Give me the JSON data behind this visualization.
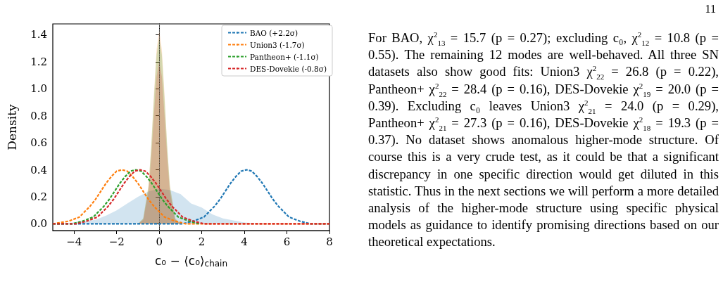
{
  "chart_data": {
    "type": "line",
    "xlabel": "c₀ − ⟨c₀⟩$_{chain}$",
    "ylabel": "Density",
    "xlim": [
      -5,
      8
    ],
    "xticks": [
      {
        "value": -4,
        "label": "−4"
      },
      {
        "value": -2,
        "label": "−2"
      },
      0,
      2,
      4,
      6,
      8
    ],
    "ylim": [
      -0.05,
      1.48
    ],
    "yticks": [
      {
        "value": 0,
        "label": "0.0"
      },
      {
        "value": 0.2,
        "label": "0.2"
      },
      {
        "value": 0.4,
        "label": "0.4"
      },
      {
        "value": 0.6,
        "label": "0.6"
      },
      {
        "value": 0.8,
        "label": "0.8"
      },
      {
        "value": 1,
        "label": "1.0"
      },
      {
        "value": 1.2,
        "label": "1.2"
      },
      {
        "value": 1.4,
        "label": "1.4"
      }
    ],
    "grid": false,
    "legend": "top right",
    "marker": "none",
    "line_style": "dashed",
    "ref_lines": [
      {
        "axis": "x",
        "value": 0,
        "color": "#999999",
        "line_style": "dotted"
      }
    ],
    "series": [
      {
        "type": "area",
        "color": "#1f77b4",
        "x": [
          -5,
          -4,
          -3,
          -2.5,
          -2,
          -1.5,
          -1,
          -0.5,
          0,
          0.5,
          1,
          1.5,
          2,
          2.5,
          3,
          4,
          5,
          6,
          8
        ],
        "values": [
          0,
          0.01,
          0.03,
          0.06,
          0.1,
          0.15,
          0.2,
          0.24,
          0.26,
          0.25,
          0.22,
          0.15,
          0.12,
          0.07,
          0.04,
          0.01,
          0,
          0,
          0
        ]
      },
      {
        "type": "area",
        "color": "#ff7f0e",
        "x": [
          -5,
          -1,
          -0.75,
          -0.5,
          -0.375,
          -0.25,
          -0.125,
          0,
          0.125,
          0.25,
          0.375,
          0.5,
          0.75,
          1,
          8
        ],
        "values": [
          0,
          0,
          0.04,
          0.29,
          0.58,
          0.96,
          1.29,
          1.43,
          1.29,
          0.96,
          0.58,
          0.29,
          0.04,
          0,
          0
        ]
      },
      {
        "type": "area",
        "color": "#2ca02c",
        "x": [
          -5,
          -1,
          -0.75,
          -0.5,
          -0.375,
          -0.25,
          -0.125,
          0,
          0.125,
          0.25,
          0.375,
          0.5,
          0.75,
          1,
          8
        ],
        "values": [
          0,
          0,
          0.04,
          0.28,
          0.57,
          0.92,
          1.25,
          1.38,
          1.25,
          0.92,
          0.57,
          0.28,
          0.04,
          0,
          0
        ]
      },
      {
        "type": "area",
        "color": "#d62728",
        "x": [
          -5,
          -1,
          -0.75,
          -0.5,
          -0.375,
          -0.25,
          -0.125,
          0,
          0.125,
          0.25,
          0.375,
          0.5,
          0.75,
          1,
          8
        ],
        "values": [
          0,
          0,
          0.03,
          0.24,
          0.49,
          0.8,
          1.09,
          1.2,
          1.09,
          0.8,
          0.49,
          0.24,
          0.03,
          0,
          0
        ]
      },
      {
        "name": "BAO (+2.2σ)",
        "color": "#1f77b4",
        "x": [
          -5,
          0.1,
          0.6,
          1.1,
          1.6,
          2.1,
          2.35,
          2.6,
          2.85,
          3.1,
          3.35,
          3.6,
          3.85,
          4.1,
          4.35,
          4.6,
          4.85,
          5.1,
          5.35,
          5.6,
          5.85,
          6.1,
          6.6,
          7.1,
          7.6,
          8
        ],
        "values": [
          0,
          0,
          0,
          0,
          0.02,
          0.05,
          0.09,
          0.13,
          0.18,
          0.24,
          0.3,
          0.35,
          0.39,
          0.4,
          0.39,
          0.35,
          0.3,
          0.24,
          0.18,
          0.13,
          0.09,
          0.05,
          0.02,
          0,
          0,
          0
        ]
      },
      {
        "name": "Union3 (-1.7σ)",
        "color": "#ff7f0e",
        "x": [
          -5,
          -4.25,
          -3.75,
          -3.5,
          -3.25,
          -3,
          -2.75,
          -2.5,
          -2.25,
          -2,
          -1.75,
          -1.5,
          -1.25,
          -1,
          -0.75,
          -0.5,
          -0.25,
          0,
          0.25,
          0.75,
          1.25,
          1.75,
          2.25,
          8
        ],
        "values": [
          0,
          0.02,
          0.05,
          0.09,
          0.13,
          0.18,
          0.24,
          0.3,
          0.35,
          0.39,
          0.4,
          0.39,
          0.35,
          0.3,
          0.24,
          0.18,
          0.13,
          0.09,
          0.05,
          0.02,
          0,
          0,
          0,
          0
        ]
      },
      {
        "name": "Pantheon+ (-1.1σ)",
        "color": "#2ca02c",
        "x": [
          -5,
          -4.6,
          -4.1,
          -3.6,
          -3.1,
          -2.85,
          -2.6,
          -2.35,
          -2.1,
          -1.85,
          -1.6,
          -1.35,
          -1.1,
          -0.85,
          -0.6,
          -0.35,
          -0.1,
          0.15,
          0.4,
          0.65,
          0.9,
          1.4,
          1.9
        ],
        "values": [
          0,
          0,
          0,
          0.02,
          0.05,
          0.09,
          0.13,
          0.18,
          0.24,
          0.3,
          0.35,
          0.39,
          0.4,
          0.39,
          0.35,
          0.3,
          0.24,
          0.18,
          0.13,
          0.09,
          0.05,
          0.02,
          0
        ]
      },
      {
        "name": "DES-Dovekie (-0.8σ)",
        "color": "#d62728",
        "x": [
          -5,
          -4.4,
          -3.9,
          -3.4,
          -2.9,
          -2.65,
          -2.4,
          -2.15,
          -1.9,
          -1.65,
          -1.4,
          -1.15,
          -0.9,
          -0.65,
          -0.4,
          -0.15,
          0.1,
          0.35,
          0.6,
          0.85,
          1.1,
          1.6,
          2.1,
          2.6,
          3.1,
          8
        ],
        "values": [
          0,
          0,
          0,
          0.02,
          0.05,
          0.09,
          0.13,
          0.18,
          0.24,
          0.3,
          0.35,
          0.39,
          0.4,
          0.39,
          0.35,
          0.3,
          0.24,
          0.18,
          0.13,
          0.09,
          0.05,
          0.02,
          0,
          0,
          0,
          0
        ]
      }
    ],
    "annotations": [
      "11",
      "For BAO, χ$^{2}$$_{13}$ = 15.7 (p = 0.27); excluding c₀, χ$^{2}$$_{12}$ = 10.8 (p = 0.55). The remaining 12 modes are well-behaved. All three SN datasets also show good fits: Union3 χ$^{2}$$_{22}$ = 26.8 (p = 0.22), Pantheon+ χ$^{2}$$_{22}$ = 28.4 (p = 0.16), DES-Dovekie χ$^{2}$$_{19}$ = 20.0 (p = 0.39). Excluding c₀ leaves Union3 χ$^{2}$$_{21}$ = 24.0 (p = 0.29), Pantheon+ χ$^{2}$$_{21}$ = 27.3 (p = 0.16), DES-Dovekie χ$^{2}$$_{18}$ = 19.3 (p = 0.37). No dataset shows anomalous higher-mode structure. Of course this is a very crude test, as it could be that a significant discrepancy in one specific direction would get diluted in this statistic. Thus in the next sections we will perform a more detailed analysis of the higher-mode structure using specific physical models as guidance to identify promising directions based on our theoretical expectations."
    ]
  }
}
